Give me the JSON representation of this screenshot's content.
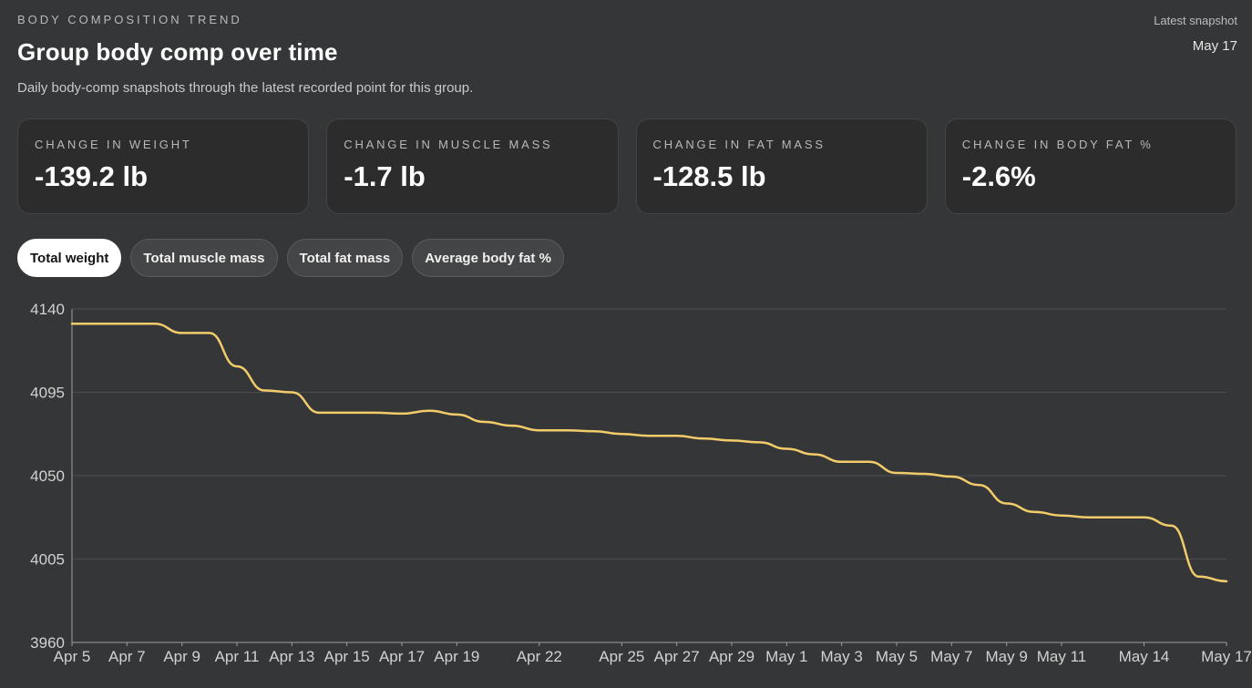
{
  "header": {
    "eyebrow": "BODY COMPOSITION TREND",
    "title": "Group body comp over time",
    "subtitle": "Daily body-comp snapshots through the latest recorded point for this group.",
    "snapshot_label": "Latest snapshot",
    "snapshot_value": "May 17"
  },
  "stats": [
    {
      "label": "CHANGE IN WEIGHT",
      "value": "-139.2 lb"
    },
    {
      "label": "CHANGE IN MUSCLE MASS",
      "value": "-1.7 lb"
    },
    {
      "label": "CHANGE IN FAT MASS",
      "value": "-128.5 lb"
    },
    {
      "label": "CHANGE IN BODY FAT %",
      "value": "-2.6%"
    }
  ],
  "tabs": [
    {
      "label": "Total weight",
      "active": true
    },
    {
      "label": "Total muscle mass",
      "active": false
    },
    {
      "label": "Total fat mass",
      "active": false
    },
    {
      "label": "Average body fat %",
      "active": false
    }
  ],
  "colors": {
    "line": "#f2cc6a",
    "grid": "#4b4c4d",
    "axis": "#9d9d9d",
    "tick_text": "#d2d2d2"
  },
  "chart_data": {
    "type": "line",
    "x_start": "2024-04-05",
    "x_end": "2024-05-17",
    "x_tick_labels": [
      "Apr 5",
      "Apr 7",
      "Apr 9",
      "Apr 11",
      "Apr 13",
      "Apr 15",
      "Apr 17",
      "Apr 19",
      "Apr 22",
      "Apr 25",
      "Apr 27",
      "Apr 29",
      "May 1",
      "May 3",
      "May 5",
      "May 7",
      "May 9",
      "May 11",
      "May 14",
      "May 17"
    ],
    "y_ticks": [
      3960,
      4005,
      4050,
      4095,
      4140
    ],
    "ylim": [
      3960,
      4140
    ],
    "grid": true,
    "series": [
      {
        "name": "Total weight",
        "x": [
          "2024-04-05",
          "2024-04-06",
          "2024-04-07",
          "2024-04-08",
          "2024-04-09",
          "2024-04-10",
          "2024-04-11",
          "2024-04-12",
          "2024-04-13",
          "2024-04-14",
          "2024-04-15",
          "2024-04-16",
          "2024-04-17",
          "2024-04-18",
          "2024-04-19",
          "2024-04-20",
          "2024-04-21",
          "2024-04-22",
          "2024-04-23",
          "2024-04-24",
          "2024-04-25",
          "2024-04-26",
          "2024-04-27",
          "2024-04-28",
          "2024-04-29",
          "2024-04-30",
          "2024-05-01",
          "2024-05-02",
          "2024-05-03",
          "2024-05-04",
          "2024-05-05",
          "2024-05-06",
          "2024-05-07",
          "2024-05-08",
          "2024-05-09",
          "2024-05-10",
          "2024-05-11",
          "2024-05-12",
          "2024-05-13",
          "2024-05-14",
          "2024-05-15",
          "2024-05-16",
          "2024-05-17"
        ],
        "values": [
          4132,
          4132,
          4132,
          4132,
          4127,
          4127,
          4109,
          4096,
          4095,
          4084,
          4084,
          4084,
          4083.5,
          4085,
          4083,
          4079,
          4077,
          4074.5,
          4074.5,
          4074,
          4072.5,
          4071.5,
          4071.5,
          4070,
          4069,
          4068,
          4064.5,
          4061.5,
          4057.5,
          4057.5,
          4051.5,
          4051,
          4049.5,
          4045,
          4035,
          4030.5,
          4028.5,
          4027.5,
          4027.5,
          4027.5,
          4023,
          3995.5,
          3993
        ]
      }
    ]
  }
}
